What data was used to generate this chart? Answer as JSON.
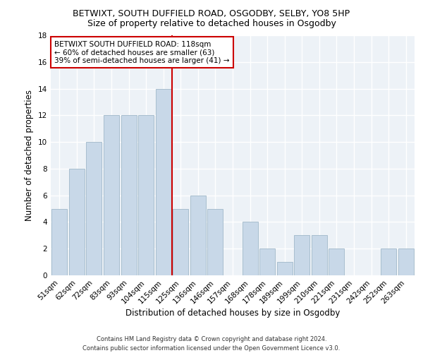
{
  "title1": "BETWIXT, SOUTH DUFFIELD ROAD, OSGODBY, SELBY, YO8 5HP",
  "title2": "Size of property relative to detached houses in Osgodby",
  "xlabel": "Distribution of detached houses by size in Osgodby",
  "ylabel": "Number of detached properties",
  "categories": [
    "51sqm",
    "62sqm",
    "72sqm",
    "83sqm",
    "93sqm",
    "104sqm",
    "115sqm",
    "125sqm",
    "136sqm",
    "146sqm",
    "157sqm",
    "168sqm",
    "178sqm",
    "189sqm",
    "199sqm",
    "210sqm",
    "221sqm",
    "231sqm",
    "242sqm",
    "252sqm",
    "263sqm"
  ],
  "values": [
    5,
    8,
    10,
    12,
    12,
    12,
    14,
    5,
    6,
    5,
    0,
    4,
    2,
    1,
    3,
    3,
    2,
    0,
    0,
    2,
    2
  ],
  "bar_color": "#c8d8e8",
  "bar_edge_color": "#a8bece",
  "vline_color": "#cc0000",
  "vline_x_index": 6.5,
  "annotation_text": "BETWIXT SOUTH DUFFIELD ROAD: 118sqm\n← 60% of detached houses are smaller (63)\n39% of semi-detached houses are larger (41) →",
  "annotation_box_color": "#ffffff",
  "annotation_box_edge": "#cc0000",
  "ylim": [
    0,
    18
  ],
  "yticks": [
    0,
    2,
    4,
    6,
    8,
    10,
    12,
    14,
    16,
    18
  ],
  "footnote": "Contains HM Land Registry data © Crown copyright and database right 2024.\nContains public sector information licensed under the Open Government Licence v3.0.",
  "bg_color": "#edf2f7",
  "grid_color": "#ffffff",
  "title1_fontsize": 9,
  "title2_fontsize": 9,
  "xlabel_fontsize": 8.5,
  "ylabel_fontsize": 8.5,
  "tick_fontsize": 7.5,
  "annotation_fontsize": 7.5,
  "footnote_fontsize": 6
}
